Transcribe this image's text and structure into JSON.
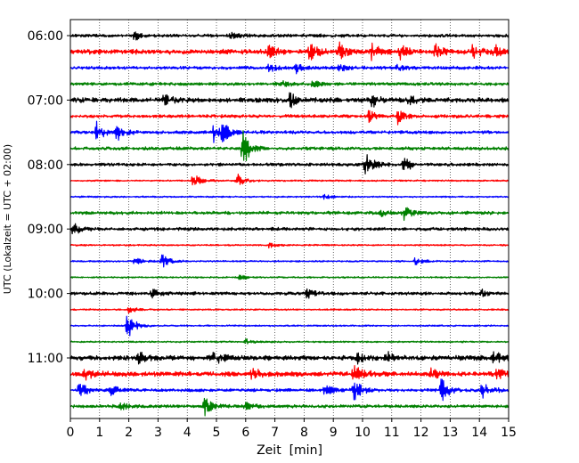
{
  "chart_data": {
    "type": "helicorder",
    "xlabel": "Zeit  [min]",
    "ylabel": "UTC (Lokalzeit = UTC + 02:00)",
    "xlim": [
      0,
      15
    ],
    "x_ticks": [
      0,
      1,
      2,
      3,
      4,
      5,
      6,
      7,
      8,
      9,
      10,
      11,
      12,
      13,
      14,
      15
    ],
    "x_grid": "dotted vertical at every minute",
    "y_tick_labels": [
      "06:00",
      "07:00",
      "08:00",
      "09:00",
      "10:00",
      "11:00"
    ],
    "trace_interval_minutes": 15,
    "trace_colors": [
      "#000000",
      "#ff0000",
      "#0000ff",
      "#008000"
    ],
    "traces": [
      {
        "start": "06:00",
        "amplitude": 2,
        "events": [
          {
            "t": 2.2,
            "a": 5
          },
          {
            "t": 5.5,
            "a": 3
          }
        ]
      },
      {
        "start": "06:15",
        "amplitude": 3,
        "events": [
          {
            "t": 6.8,
            "a": 8
          },
          {
            "t": 8.2,
            "a": 10
          },
          {
            "t": 9.2,
            "a": 9
          },
          {
            "t": 10.3,
            "a": 9
          },
          {
            "t": 11.3,
            "a": 9
          },
          {
            "t": 12.5,
            "a": 8
          },
          {
            "t": 13.7,
            "a": 10
          },
          {
            "t": 14.5,
            "a": 7
          }
        ]
      },
      {
        "start": "06:30",
        "amplitude": 2,
        "events": [
          {
            "t": 6.8,
            "a": 5
          },
          {
            "t": 7.7,
            "a": 6
          },
          {
            "t": 9.2,
            "a": 4
          },
          {
            "t": 11.2,
            "a": 4
          }
        ]
      },
      {
        "start": "06:45",
        "amplitude": 2,
        "events": [
          {
            "t": 7.2,
            "a": 4
          },
          {
            "t": 8.3,
            "a": 4
          }
        ]
      },
      {
        "start": "07:00",
        "amplitude": 3,
        "events": [
          {
            "t": 3.2,
            "a": 7
          },
          {
            "t": 7.5,
            "a": 8
          },
          {
            "t": 10.3,
            "a": 9
          },
          {
            "t": 11.6,
            "a": 6
          }
        ]
      },
      {
        "start": "07:15",
        "amplitude": 2,
        "events": [
          {
            "t": 10.2,
            "a": 6
          },
          {
            "t": 11.2,
            "a": 9
          }
        ]
      },
      {
        "start": "07:30",
        "amplitude": 2,
        "events": [
          {
            "t": 0.9,
            "a": 12
          },
          {
            "t": 1.6,
            "a": 10
          },
          {
            "t": 4.9,
            "a": 12
          },
          {
            "t": 5.2,
            "a": 10
          }
        ]
      },
      {
        "start": "07:45",
        "amplitude": 2,
        "events": [
          {
            "t": 5.9,
            "a": 22
          }
        ]
      },
      {
        "start": "08:00",
        "amplitude": 2,
        "events": [
          {
            "t": 10.1,
            "a": 14
          },
          {
            "t": 11.4,
            "a": 10
          }
        ]
      },
      {
        "start": "08:15",
        "amplitude": 1,
        "events": [
          {
            "t": 4.2,
            "a": 9
          },
          {
            "t": 5.7,
            "a": 9
          }
        ]
      },
      {
        "start": "08:30",
        "amplitude": 1,
        "events": [
          {
            "t": 8.7,
            "a": 3
          }
        ]
      },
      {
        "start": "08:45",
        "amplitude": 2,
        "events": [
          {
            "t": 10.6,
            "a": 4
          },
          {
            "t": 11.4,
            "a": 8
          }
        ]
      },
      {
        "start": "09:00",
        "amplitude": 2,
        "events": [
          {
            "t": 0.1,
            "a": 7
          }
        ]
      },
      {
        "start": "09:15",
        "amplitude": 1,
        "events": [
          {
            "t": 6.8,
            "a": 3
          }
        ]
      },
      {
        "start": "09:30",
        "amplitude": 1,
        "events": [
          {
            "t": 2.2,
            "a": 4
          },
          {
            "t": 3.1,
            "a": 9
          },
          {
            "t": 11.8,
            "a": 4
          }
        ]
      },
      {
        "start": "09:45",
        "amplitude": 1,
        "events": [
          {
            "t": 5.8,
            "a": 3
          }
        ]
      },
      {
        "start": "10:00",
        "amplitude": 2,
        "events": [
          {
            "t": 2.8,
            "a": 5
          },
          {
            "t": 8.1,
            "a": 5
          },
          {
            "t": 14.1,
            "a": 4
          }
        ]
      },
      {
        "start": "10:15",
        "amplitude": 1,
        "events": [
          {
            "t": 2.0,
            "a": 4
          }
        ]
      },
      {
        "start": "10:30",
        "amplitude": 1,
        "events": [
          {
            "t": 1.95,
            "a": 16
          }
        ]
      },
      {
        "start": "10:45",
        "amplitude": 1,
        "events": [
          {
            "t": 6.0,
            "a": 3
          }
        ]
      },
      {
        "start": "11:00",
        "amplitude": 3,
        "events": [
          {
            "t": 2.3,
            "a": 7
          },
          {
            "t": 4.9,
            "a": 9
          },
          {
            "t": 9.8,
            "a": 6
          },
          {
            "t": 10.8,
            "a": 7
          },
          {
            "t": 14.5,
            "a": 8
          }
        ]
      },
      {
        "start": "11:15",
        "amplitude": 3,
        "events": [
          {
            "t": 0.5,
            "a": 7
          },
          {
            "t": 6.2,
            "a": 7
          },
          {
            "t": 9.7,
            "a": 12
          },
          {
            "t": 12.3,
            "a": 6
          },
          {
            "t": 14.6,
            "a": 6
          }
        ]
      },
      {
        "start": "11:30",
        "amplitude": 2,
        "events": [
          {
            "t": 0.3,
            "a": 10
          },
          {
            "t": 1.4,
            "a": 6
          },
          {
            "t": 8.7,
            "a": 7
          },
          {
            "t": 9.7,
            "a": 13
          },
          {
            "t": 12.7,
            "a": 13
          },
          {
            "t": 14.1,
            "a": 11
          }
        ]
      },
      {
        "start": "11:45",
        "amplitude": 2,
        "events": [
          {
            "t": 1.7,
            "a": 5
          },
          {
            "t": 4.6,
            "a": 11
          },
          {
            "t": 6.0,
            "a": 4
          }
        ]
      }
    ]
  }
}
